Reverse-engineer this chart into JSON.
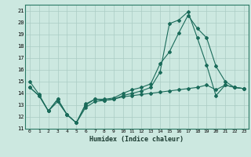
{
  "xlabel": "Humidex (Indice chaleur)",
  "bg_color": "#cce8e0",
  "grid_color": "#aaccC4",
  "line_color": "#1a6b5a",
  "xlim": [
    -0.5,
    23.5
  ],
  "ylim": [
    11,
    21.5
  ],
  "xticks": [
    0,
    1,
    2,
    3,
    4,
    5,
    6,
    7,
    8,
    9,
    10,
    11,
    12,
    13,
    14,
    15,
    16,
    17,
    18,
    19,
    20,
    21,
    22,
    23
  ],
  "yticks": [
    11,
    12,
    13,
    14,
    15,
    16,
    17,
    18,
    19,
    20,
    21
  ],
  "line1_x": [
    0,
    1,
    2,
    3,
    4,
    5,
    6,
    7,
    8,
    9,
    10,
    11,
    12,
    13,
    14,
    15,
    16,
    17,
    18,
    19,
    20,
    21,
    22,
    23
  ],
  "line1_y": [
    15.0,
    13.9,
    12.5,
    13.5,
    12.2,
    11.5,
    13.1,
    13.5,
    13.4,
    13.5,
    13.8,
    14.0,
    14.2,
    14.5,
    15.8,
    19.9,
    20.2,
    20.9,
    18.7,
    16.4,
    13.8,
    14.7,
    14.5,
    14.4
  ],
  "line2_x": [
    0,
    1,
    2,
    3,
    4,
    5,
    6,
    7,
    8,
    9,
    10,
    11,
    12,
    13,
    14,
    15,
    16,
    17,
    18,
    19,
    20,
    21,
    22,
    23
  ],
  "line2_y": [
    14.5,
    13.8,
    12.5,
    13.5,
    12.2,
    11.5,
    13.0,
    13.5,
    13.5,
    13.6,
    14.0,
    14.3,
    14.5,
    14.8,
    16.5,
    17.5,
    19.1,
    20.6,
    19.5,
    18.7,
    16.3,
    15.0,
    14.5,
    14.4
  ],
  "line3_x": [
    0,
    1,
    2,
    3,
    4,
    5,
    6,
    7,
    8,
    9,
    10,
    11,
    12,
    13,
    14,
    15,
    16,
    17,
    18,
    19,
    20,
    21,
    22,
    23
  ],
  "line3_y": [
    14.5,
    13.8,
    12.5,
    13.3,
    12.2,
    11.5,
    12.8,
    13.3,
    13.4,
    13.5,
    13.7,
    13.8,
    13.9,
    14.0,
    14.1,
    14.2,
    14.3,
    14.4,
    14.5,
    14.7,
    14.3,
    14.7,
    14.5,
    14.4
  ]
}
